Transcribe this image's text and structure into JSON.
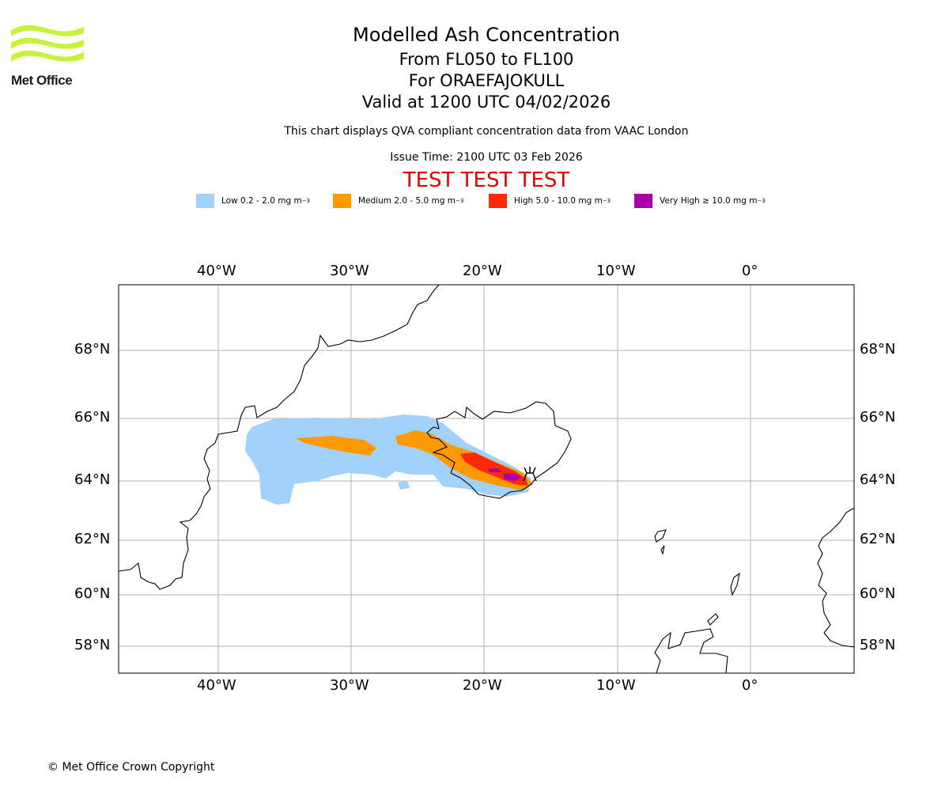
{
  "header": {
    "title": "Modelled Ash Concentration",
    "levels": "From FL050 to FL100",
    "volcano": "For ORAEFAJOKULL",
    "valid": "Valid at 1200 UTC 04/02/2026",
    "subtitle": "This chart displays QVA compliant concentration data from VAAC London",
    "issue_time": "Issue Time: 2100 UTC 03 Feb 2026",
    "test_banner": "TEST TEST TEST"
  },
  "logo": {
    "text": "Met Office"
  },
  "legend": [
    {
      "label": "Low 0.2 - 2.0 mg m",
      "color": "#a2d2fb"
    },
    {
      "label": "Medium 2.0 - 5.0 mg m",
      "color": "#ff9900"
    },
    {
      "label": "High 5.0 - 10.0 mg m",
      "color": "#ff2b00"
    },
    {
      "label": "Very High ≥ 10.0 mg m",
      "color": "#aa00aa"
    }
  ],
  "legend_exponent": "−3",
  "axes": {
    "lon_labels": [
      "40°W",
      "30°W",
      "20°W",
      "10°W",
      "0°"
    ],
    "lat_labels": [
      "68°N",
      "66°N",
      "64°N",
      "62°N",
      "60°N",
      "58°N"
    ]
  },
  "copyright": "© Met Office Crown Copyright",
  "colors": {
    "coast": "#000000",
    "grid": "#b0b0b0"
  }
}
